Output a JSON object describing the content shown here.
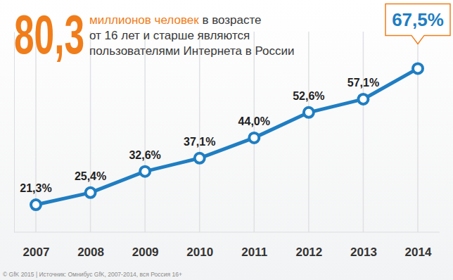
{
  "chart_data": {
    "type": "line",
    "title": "80,3",
    "subtitle": [
      "миллионов человек в возрасте",
      "от 16 лет и старше являются",
      "пользователями Интернета в России"
    ],
    "source": "© GfK 2015 | Источник: Омнибус GfK, 2007-2014, вся Россия 16+",
    "categories": [
      "2007",
      "2008",
      "2009",
      "2010",
      "2011",
      "2012",
      "2013",
      "2014"
    ],
    "values": [
      21.3,
      25.4,
      32.6,
      37.1,
      44.0,
      52.6,
      57.1,
      67.5
    ],
    "value_labels": [
      "21,3%",
      "25,4%",
      "32,6%",
      "37,1%",
      "44,0%",
      "52,6%",
      "57,1%",
      "67,5%"
    ],
    "color": "#1f7ec2",
    "marker": "circle",
    "ylim": [
      12,
      80
    ],
    "grid": "x",
    "data_labels": true,
    "tick_labels": "x"
  }
}
